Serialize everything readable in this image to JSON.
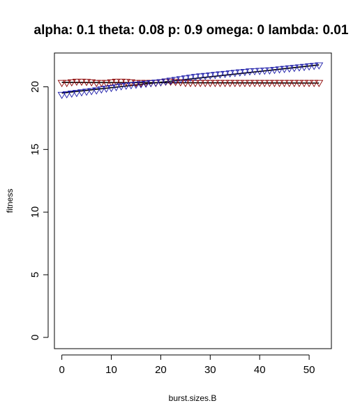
{
  "chart_data": {
    "type": "scatter",
    "title": "alpha: 0.1 theta: 0.08 p: 0.9 omega: 0 lambda: 0.01",
    "xlabel": "burst.sizes.B",
    "ylabel": "fitness",
    "xlim": [
      -1.5,
      54.5
    ],
    "ylim": [
      -0.9,
      22.7
    ],
    "xticks": [
      0,
      10,
      20,
      30,
      40,
      50
    ],
    "yticks": [
      0,
      5,
      10,
      15,
      20
    ],
    "grid": false,
    "legend": "none",
    "colors": {
      "series_1_markers": "#8b0000",
      "series_2_markers": "#1a1aa8",
      "fit_line_1": "#000000",
      "fit_line_2": "#000000"
    },
    "series": [
      {
        "marker": "triangle-down",
        "color": "#8b0000",
        "x": [
          0,
          1,
          2,
          3,
          4,
          5,
          6,
          7,
          8,
          9,
          10,
          11,
          12,
          13,
          14,
          15,
          16,
          17,
          18,
          19,
          20,
          21,
          22,
          23,
          24,
          25,
          26,
          27,
          28,
          29,
          30,
          31,
          32,
          33,
          34,
          35,
          36,
          37,
          38,
          39,
          40,
          41,
          42,
          43,
          44,
          45,
          46,
          47,
          48,
          49,
          50,
          51,
          52
        ],
        "y": [
          20.3,
          20.3,
          20.35,
          20.4,
          20.4,
          20.38,
          20.35,
          20.3,
          20.3,
          20.3,
          20.35,
          20.4,
          20.4,
          20.38,
          20.35,
          20.3,
          20.3,
          20.3,
          20.3,
          20.3,
          20.35,
          20.4,
          20.4,
          20.38,
          20.35,
          20.3,
          20.3,
          20.3,
          20.3,
          20.3,
          20.3,
          20.3,
          20.3,
          20.3,
          20.3,
          20.3,
          20.3,
          20.3,
          20.3,
          20.3,
          20.3,
          20.3,
          20.3,
          20.3,
          20.3,
          20.3,
          20.3,
          20.3,
          20.3,
          20.3,
          20.3,
          20.3,
          20.3
        ]
      },
      {
        "marker": "triangle-down",
        "color": "#1a1aa8",
        "x": [
          0,
          1,
          2,
          3,
          4,
          5,
          6,
          7,
          8,
          9,
          10,
          11,
          12,
          13,
          14,
          15,
          16,
          17,
          18,
          19,
          20,
          21,
          22,
          23,
          24,
          25,
          26,
          27,
          28,
          29,
          30,
          31,
          32,
          33,
          34,
          35,
          36,
          37,
          38,
          39,
          40,
          41,
          42,
          43,
          44,
          45,
          46,
          47,
          48,
          49,
          50,
          51,
          52
        ],
        "y": [
          19.35,
          19.4,
          19.45,
          19.5,
          19.55,
          19.6,
          19.65,
          19.7,
          19.78,
          19.85,
          19.9,
          19.97,
          20.03,
          20.08,
          20.12,
          20.16,
          20.2,
          20.24,
          20.28,
          20.32,
          20.36,
          20.42,
          20.48,
          20.54,
          20.6,
          20.66,
          20.72,
          20.78,
          20.82,
          20.86,
          20.9,
          20.94,
          20.98,
          21.02,
          21.06,
          21.1,
          21.14,
          21.18,
          21.22,
          21.24,
          21.26,
          21.28,
          21.3,
          21.34,
          21.38,
          21.42,
          21.46,
          21.5,
          21.54,
          21.58,
          21.62,
          21.66,
          21.7
        ]
      }
    ],
    "fit_lines": [
      {
        "x": [
          0,
          52
        ],
        "y": [
          20.35,
          20.3
        ]
      },
      {
        "x": [
          0,
          52
        ],
        "y": [
          19.5,
          21.75
        ]
      }
    ]
  }
}
